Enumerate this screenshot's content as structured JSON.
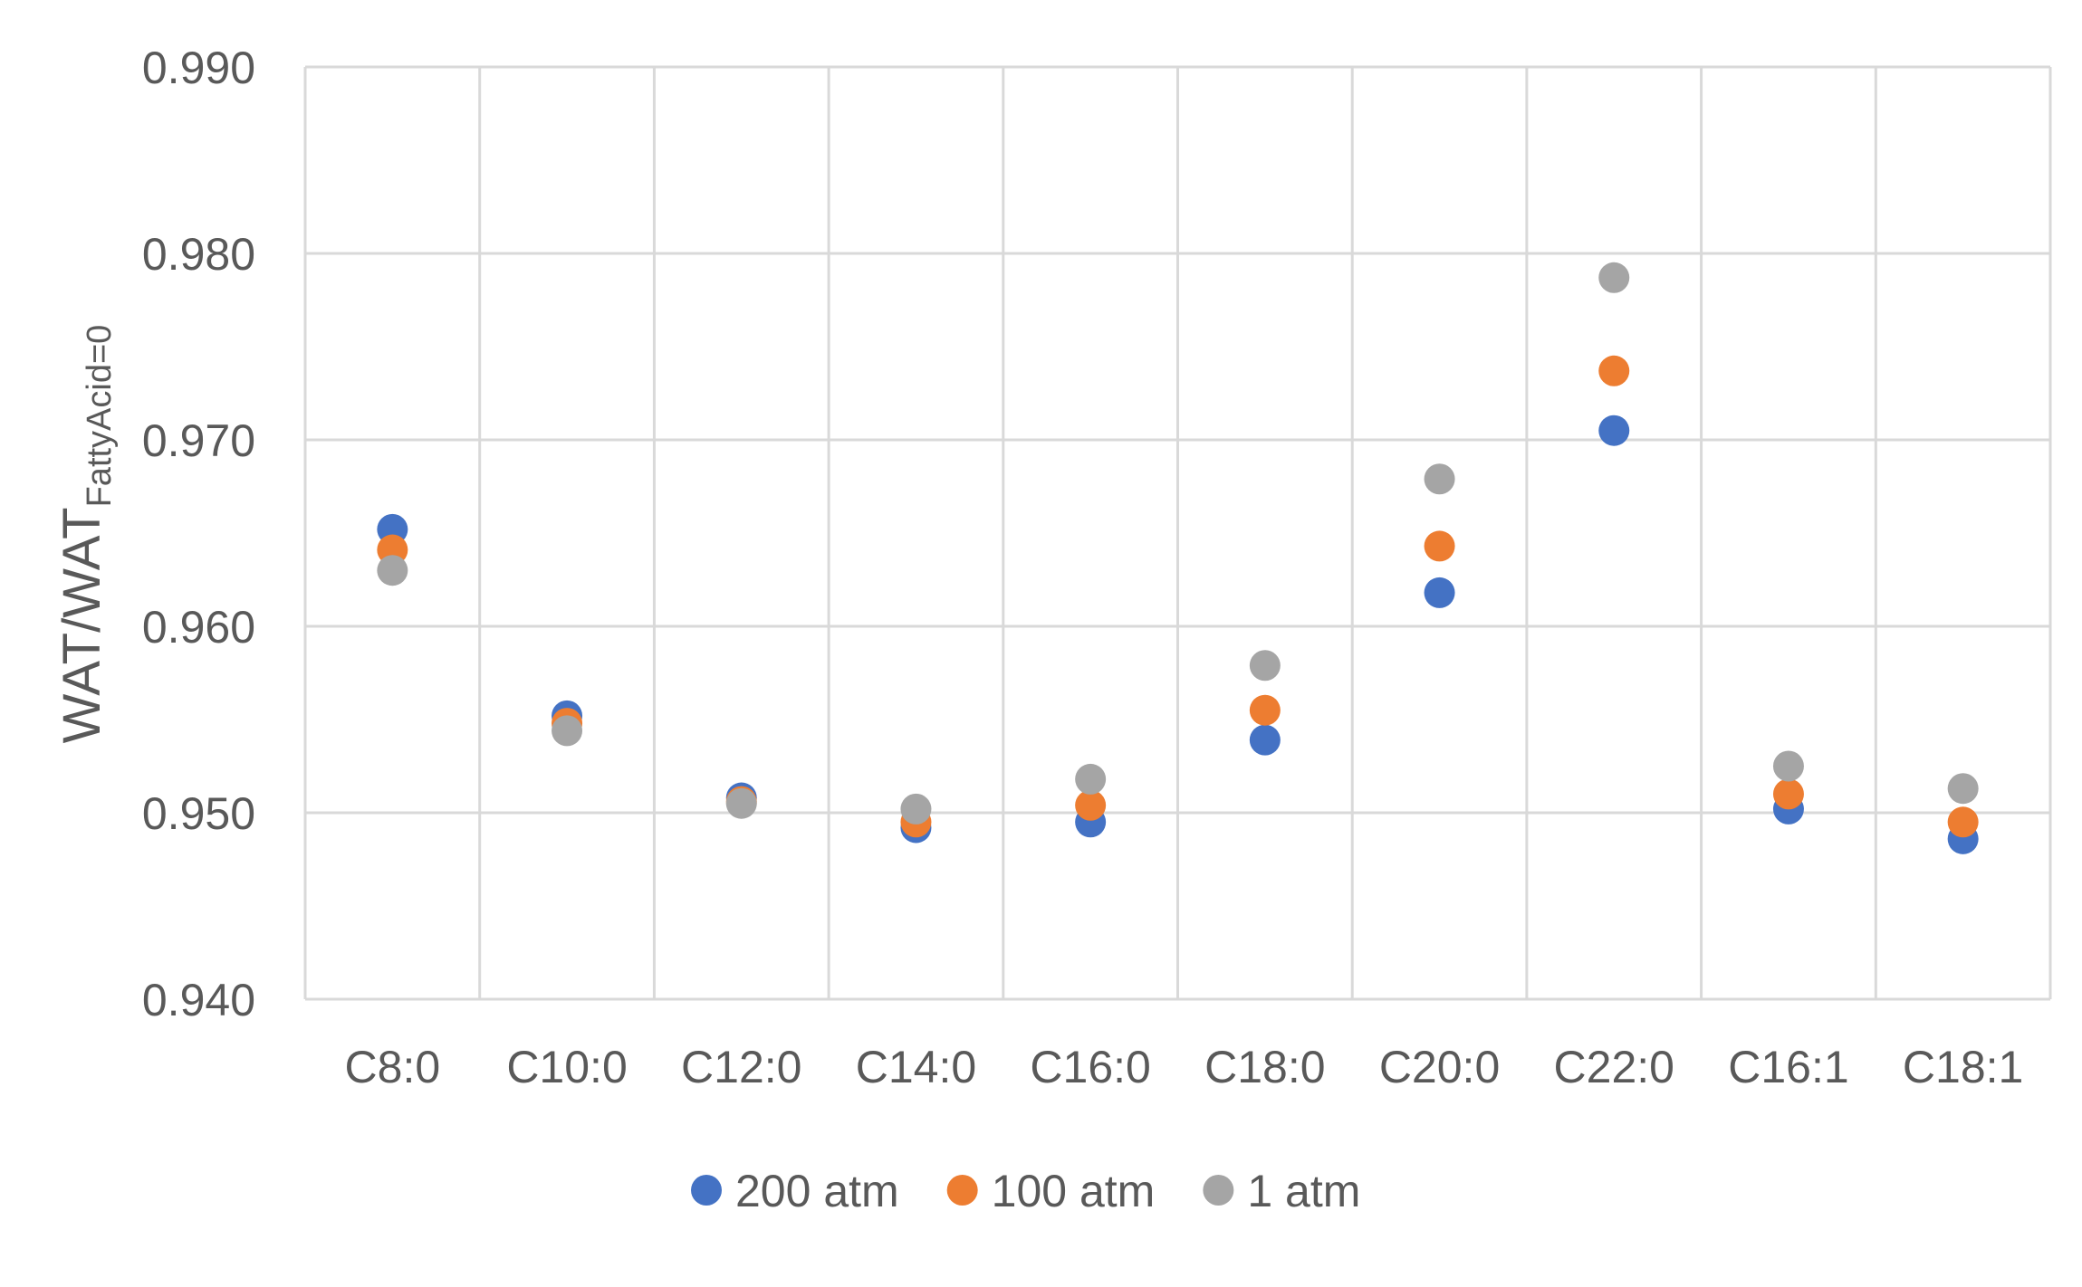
{
  "chart_data": {
    "type": "scatter",
    "title": "",
    "xlabel": "",
    "ylabel": {
      "main": "WAT/WAT",
      "subscript": "FattyAcid=0"
    },
    "categories": [
      "C8:0",
      "C10:0",
      "C12:0",
      "C14:0",
      "C16:0",
      "C18:0",
      "C20:0",
      "C22:0",
      "C16:1",
      "C18:1"
    ],
    "ylim": [
      0.94,
      0.99
    ],
    "y_ticks": [
      "0.940",
      "0.950",
      "0.960",
      "0.970",
      "0.980",
      "0.990"
    ],
    "grid": true,
    "legend": "bottom",
    "series": [
      {
        "name": "200 atm",
        "color": "#4472C4",
        "values": [
          0.9652,
          0.9552,
          0.9508,
          0.9492,
          0.9495,
          0.9539,
          0.9618,
          0.9705,
          0.9502,
          0.9486
        ]
      },
      {
        "name": "100 atm",
        "color": "#ED7D31",
        "values": [
          0.9641,
          0.9548,
          0.9506,
          0.9495,
          0.9504,
          0.9555,
          0.9643,
          0.9737,
          0.951,
          0.9495
        ]
      },
      {
        "name": "1 atm",
        "color": "#A5A5A5",
        "values": [
          0.963,
          0.9544,
          0.9505,
          0.9502,
          0.9518,
          0.9579,
          0.9679,
          0.9787,
          0.9525,
          0.9513
        ]
      }
    ]
  }
}
